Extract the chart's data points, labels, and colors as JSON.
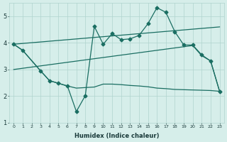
{
  "xlabel": "Humidex (Indice chaleur)",
  "xlim": [
    -0.5,
    23.5
  ],
  "ylim": [
    1,
    5.5
  ],
  "yticks": [
    1,
    2,
    3,
    4,
    5
  ],
  "xticks": [
    0,
    1,
    2,
    3,
    4,
    5,
    6,
    7,
    8,
    9,
    10,
    11,
    12,
    13,
    14,
    15,
    16,
    17,
    18,
    19,
    20,
    21,
    22,
    23
  ],
  "bg_color": "#d6eeea",
  "grid_color": "#b0d4ce",
  "line_color": "#1a6e62",
  "lines": [
    {
      "x": [
        0,
        1,
        3,
        4,
        5,
        6,
        7,
        8,
        9,
        10,
        11,
        12,
        13,
        14,
        15,
        16,
        17,
        18,
        19,
        20,
        21,
        22,
        23
      ],
      "y": [
        3.95,
        3.72,
        2.95,
        2.58,
        2.48,
        2.38,
        2.3,
        2.32,
        2.34,
        2.45,
        2.45,
        2.43,
        2.4,
        2.38,
        2.35,
        2.3,
        2.28,
        2.25,
        2.24,
        2.23,
        2.22,
        2.21,
        2.18
      ],
      "marker": null,
      "lw": 0.9
    },
    {
      "x": [
        0,
        1,
        3,
        4,
        5,
        6,
        7,
        8,
        9,
        10,
        11,
        12,
        13,
        14,
        15,
        16,
        17,
        18,
        19,
        20,
        21,
        22,
        23
      ],
      "y": [
        3.95,
        3.72,
        2.95,
        2.58,
        2.48,
        2.38,
        1.42,
        2.02,
        4.62,
        3.95,
        4.35,
        4.12,
        4.15,
        4.28,
        4.72,
        5.32,
        5.15,
        4.42,
        3.92,
        3.92,
        3.55,
        3.32,
        2.18
      ],
      "marker": "D",
      "lw": 0.9
    },
    {
      "x": [
        0,
        23
      ],
      "y": [
        3.95,
        4.6
      ],
      "marker": null,
      "lw": 0.9
    },
    {
      "x": [
        0,
        20,
        21,
        22,
        23
      ],
      "y": [
        3.0,
        3.9,
        3.52,
        3.32,
        2.18
      ],
      "marker": null,
      "lw": 0.9
    }
  ]
}
